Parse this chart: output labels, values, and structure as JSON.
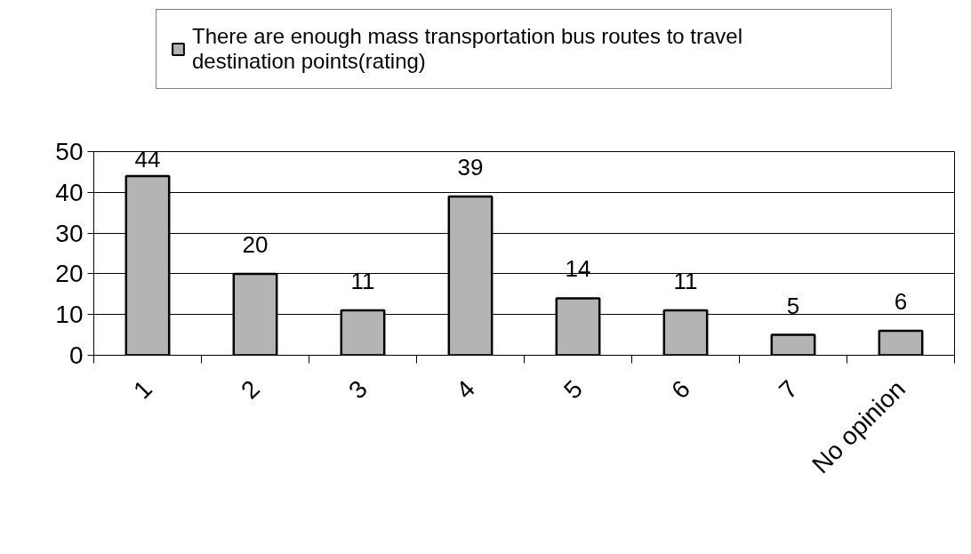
{
  "chart_data": {
    "type": "bar",
    "categories": [
      "1",
      "2",
      "3",
      "4",
      "5",
      "6",
      "7",
      "No opinion"
    ],
    "series": [
      {
        "name": "There are enough mass transportation bus routes to travel destination points(rating)",
        "color": "#b4b4b4",
        "values": [
          44,
          20,
          11,
          39,
          14,
          11,
          5,
          6
        ]
      }
    ],
    "ylim": [
      0,
      50
    ],
    "yticks": [
      0,
      10,
      20,
      30,
      40,
      50
    ],
    "grid": "y",
    "legend": "top",
    "data_labels": true
  }
}
